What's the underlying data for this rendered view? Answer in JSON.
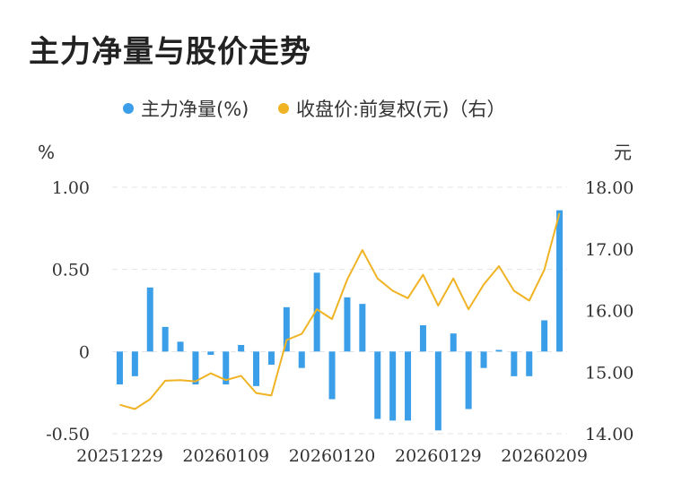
{
  "header": {
    "title": "主力净量与股价走势"
  },
  "legend": {
    "series1": {
      "label": "主力净量(%)",
      "color": "#3a9ee8"
    },
    "series2": {
      "label": "收盘价:前复权(元)（右）",
      "color": "#f0b323"
    }
  },
  "chart_data": {
    "type": "bar",
    "x_tick_labels": [
      "20251229",
      "20260109",
      "20260120",
      "20260129",
      "20260209"
    ],
    "left_axis": {
      "unit": "%",
      "ylim": [
        -0.5,
        1.0
      ],
      "ticks": [
        "-0.50",
        "0",
        "0.50",
        "1.00"
      ]
    },
    "right_axis": {
      "unit": "元",
      "ylim": [
        14.0,
        18.0
      ],
      "ticks": [
        "14.00",
        "15.00",
        "16.00",
        "17.00",
        "18.00"
      ]
    },
    "grid": true,
    "series": [
      {
        "name": "主力净量(%)",
        "type": "bar",
        "color": "#3a9ee8",
        "values": [
          -0.2,
          -0.15,
          0.39,
          0.15,
          0.06,
          -0.2,
          -0.02,
          -0.2,
          0.04,
          -0.21,
          -0.08,
          0.27,
          -0.1,
          0.48,
          -0.29,
          0.33,
          0.29,
          -0.41,
          -0.42,
          -0.42,
          0.16,
          -0.48,
          0.11,
          -0.35,
          -0.1,
          0.01,
          -0.15,
          -0.15,
          0.19,
          0.86
        ]
      },
      {
        "name": "收盘价:前复权(元)（右）",
        "type": "line",
        "color": "#f0b323",
        "values": [
          14.47,
          14.4,
          14.56,
          14.86,
          14.87,
          14.85,
          14.98,
          14.87,
          14.94,
          14.66,
          14.62,
          15.52,
          15.62,
          16.02,
          15.86,
          16.5,
          16.98,
          16.52,
          16.32,
          16.2,
          16.58,
          16.08,
          16.52,
          16.02,
          16.42,
          16.72,
          16.32,
          16.16,
          16.66,
          17.58
        ]
      }
    ]
  }
}
